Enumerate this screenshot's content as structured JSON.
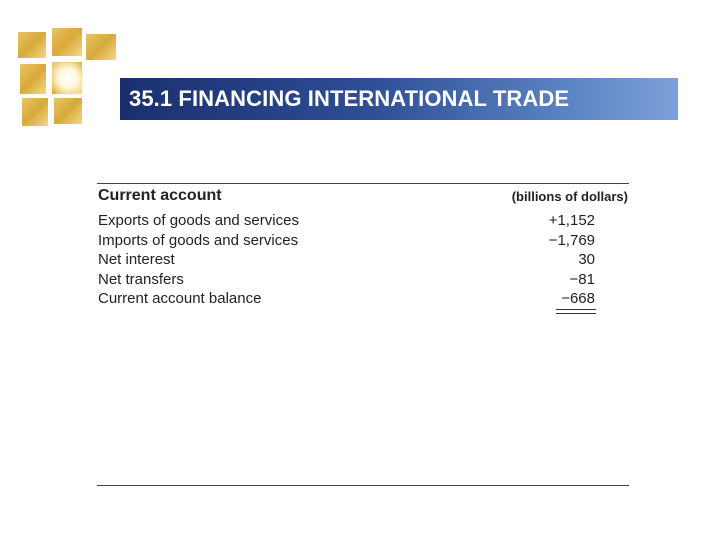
{
  "slide": {
    "title": "35.1 FINANCING INTERNATIONAL TRADE"
  },
  "table": {
    "header_left": "Current account",
    "header_right": "(billions of dollars)",
    "rows": [
      {
        "label": "Exports of goods and services",
        "value": "+1,152"
      },
      {
        "label": "Imports of goods and services",
        "value": "−1,769"
      },
      {
        "label": "Net interest",
        "value": "30"
      },
      {
        "label": "Net transfers",
        "value": "−81"
      },
      {
        "label": "Current account balance",
        "value": "−668"
      }
    ]
  },
  "colors": {
    "title_bar_dark": "#1a2f6e",
    "title_bar_light": "#7ea0d6",
    "logo_gold": "#d8a939"
  }
}
